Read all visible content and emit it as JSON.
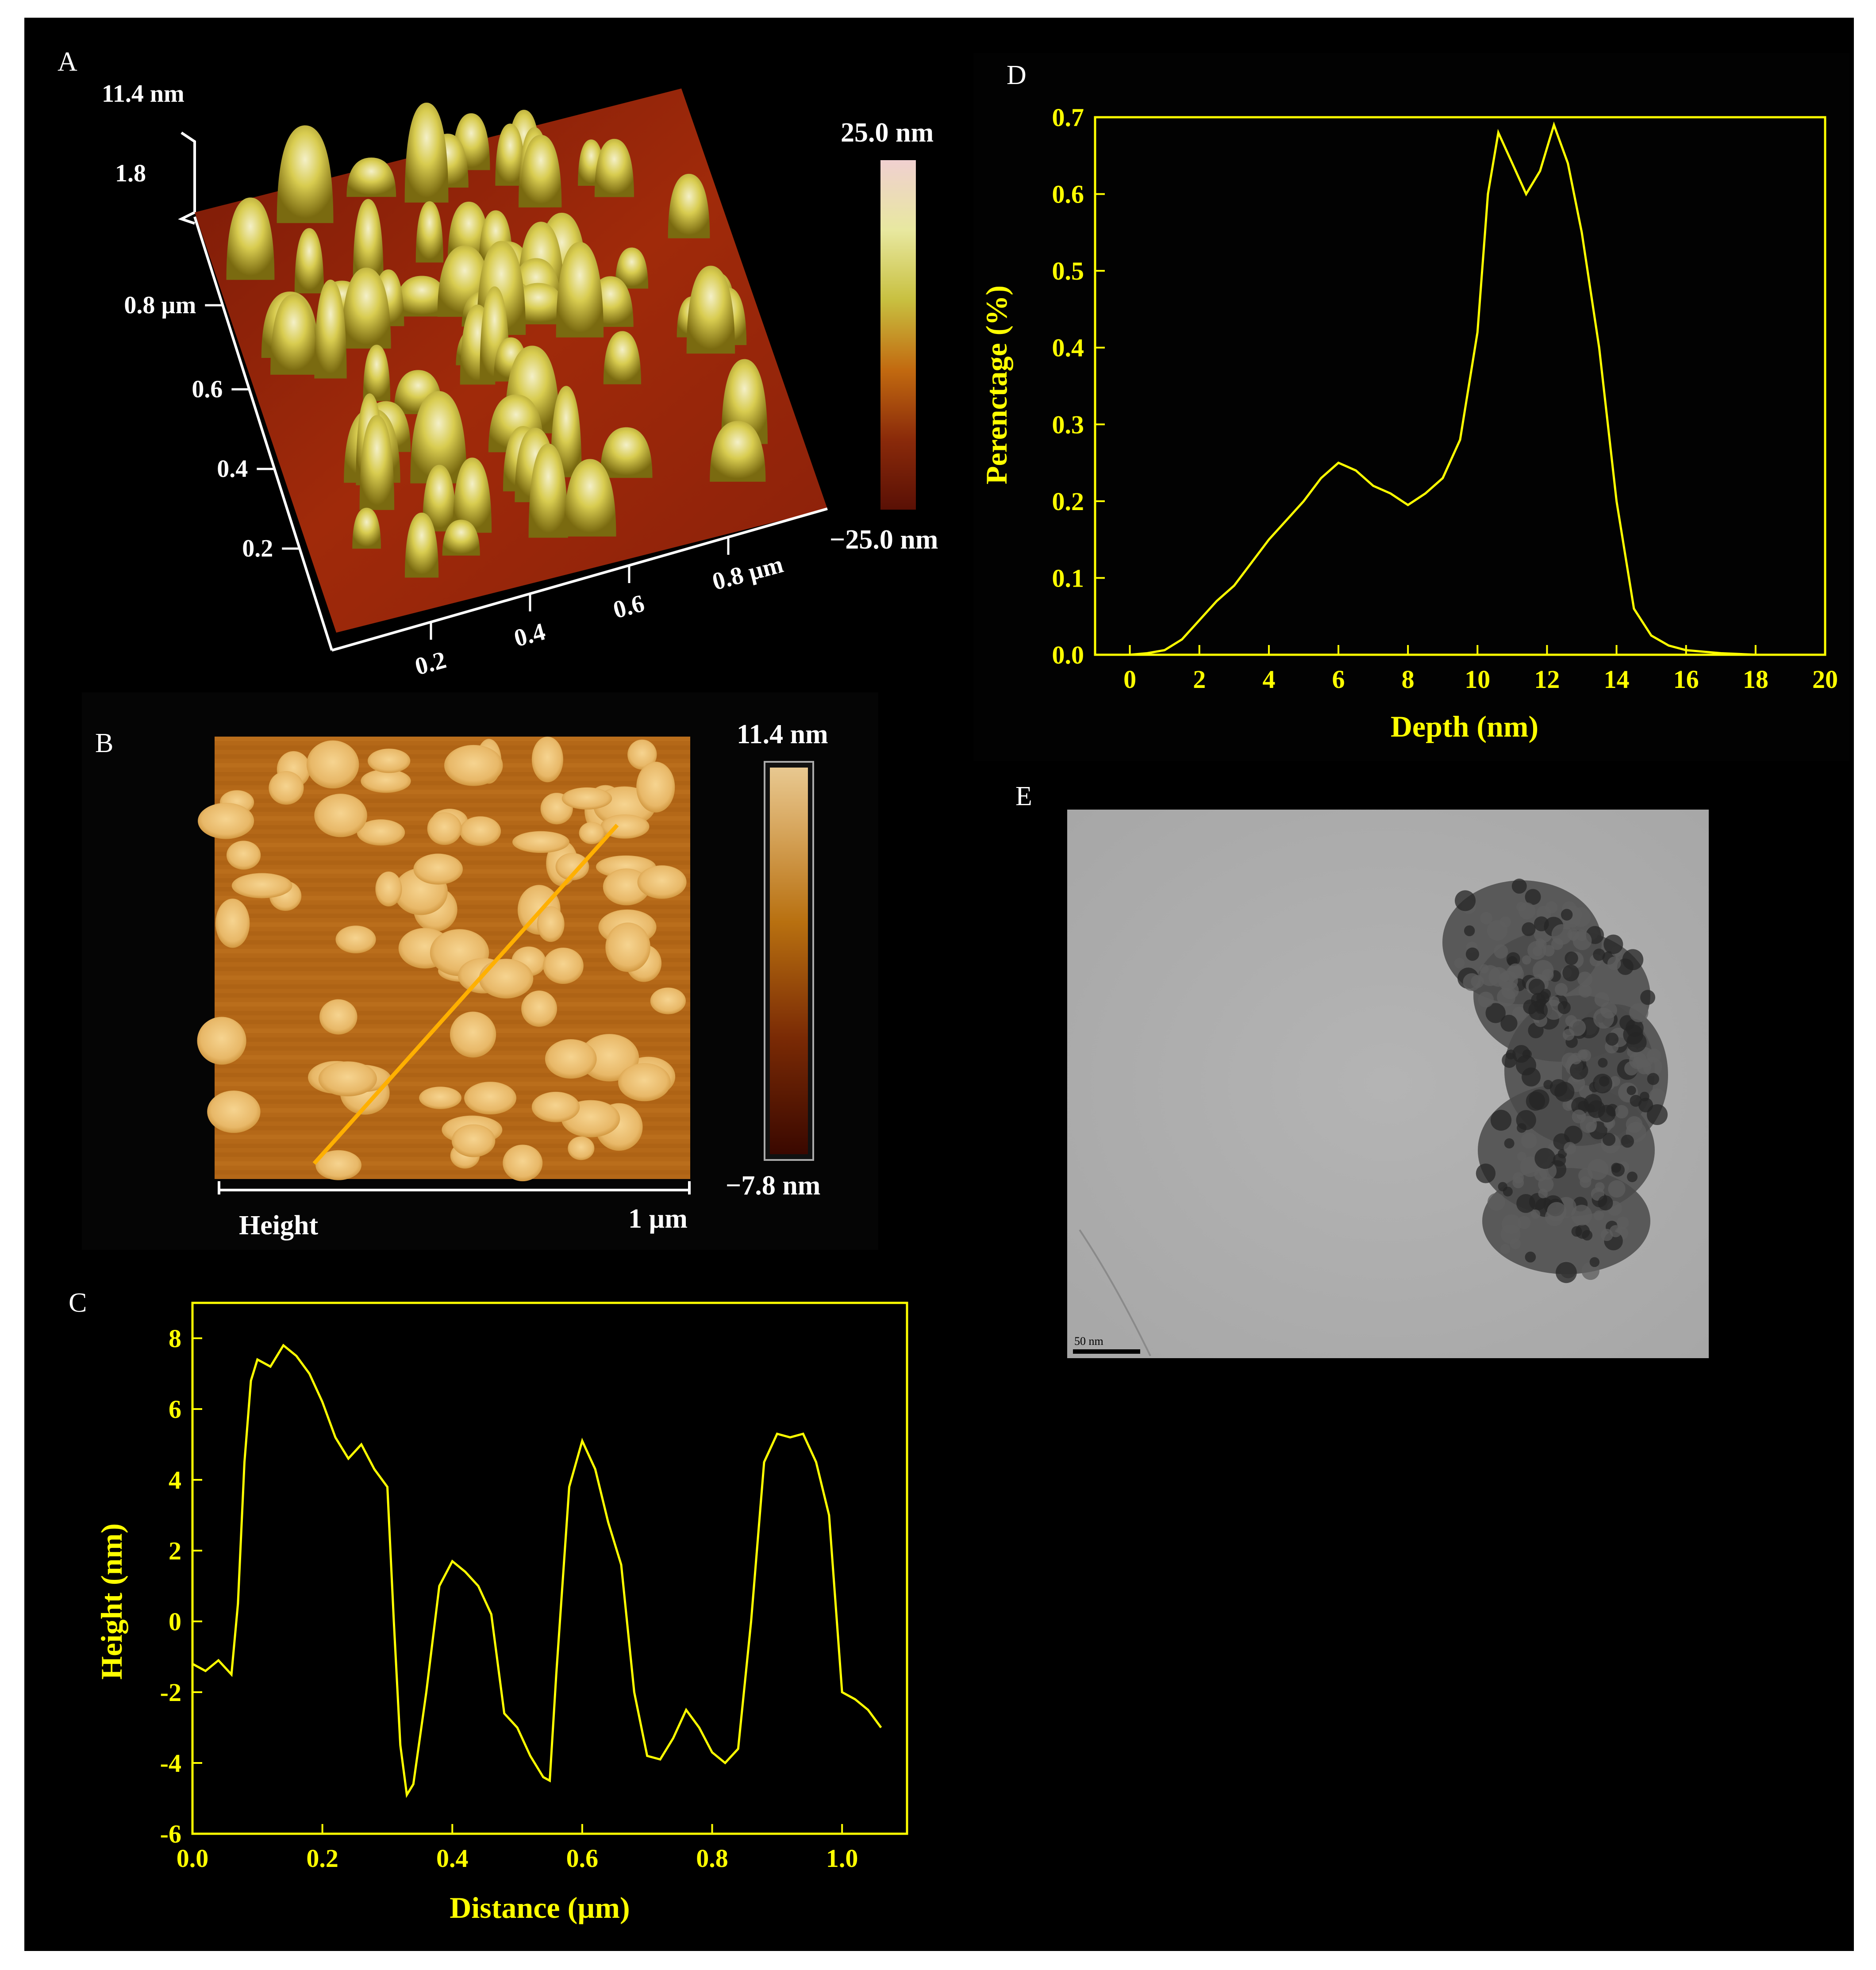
{
  "panels": {
    "A": {
      "label": "A",
      "z_top_label": "11.4 nm",
      "z_tick": "1.8",
      "colorbar_max": "25.0 nm",
      "colorbar_min": "−25.0 nm",
      "y_axis_ticks": [
        "0.8 µm",
        "0.6",
        "0.4",
        "0.2"
      ],
      "x_axis_ticks": [
        "0.2",
        "0.4",
        "0.6",
        "0.8 µm"
      ],
      "colorbar_colors": [
        "#5a1005",
        "#8a2a0a",
        "#c26a10",
        "#c8c040",
        "#e8e8a0",
        "#f0d0d0"
      ]
    },
    "B": {
      "label": "B",
      "colorbar_max": "11.4 nm",
      "colorbar_min": "−7.8 nm",
      "channel_label": "Height",
      "scale_label": "1 µm",
      "profile_line_color": "#ffb000"
    },
    "C": {
      "label": "C",
      "chart_data": {
        "type": "line",
        "xlabel": "Distance (µm)",
        "ylabel": "Height (nm)",
        "xlim": [
          0.0,
          1.1
        ],
        "ylim": [
          -6,
          9
        ],
        "xticks": [
          "0.0",
          "0.2",
          "0.4",
          "0.6",
          "0.8",
          "1.0"
        ],
        "yticks": [
          "8",
          "6",
          "4",
          "2",
          "0",
          "-2",
          "-4",
          "-6"
        ],
        "color": "#ffff00",
        "x": [
          0.0,
          0.02,
          0.04,
          0.06,
          0.07,
          0.08,
          0.09,
          0.1,
          0.12,
          0.14,
          0.16,
          0.18,
          0.2,
          0.22,
          0.24,
          0.26,
          0.28,
          0.3,
          0.31,
          0.32,
          0.33,
          0.34,
          0.36,
          0.38,
          0.4,
          0.42,
          0.44,
          0.46,
          0.48,
          0.5,
          0.52,
          0.54,
          0.55,
          0.56,
          0.58,
          0.6,
          0.62,
          0.64,
          0.66,
          0.68,
          0.7,
          0.72,
          0.74,
          0.76,
          0.78,
          0.8,
          0.82,
          0.84,
          0.86,
          0.88,
          0.9,
          0.92,
          0.94,
          0.96,
          0.98,
          1.0,
          1.02,
          1.04,
          1.06
        ],
        "y": [
          -1.2,
          -1.4,
          -1.1,
          -1.5,
          0.5,
          4.5,
          6.8,
          7.4,
          7.2,
          7.8,
          7.5,
          7.0,
          6.2,
          5.2,
          4.6,
          5.0,
          4.3,
          3.8,
          0.0,
          -3.5,
          -4.9,
          -4.6,
          -2.0,
          1.0,
          1.7,
          1.4,
          1.0,
          0.2,
          -2.6,
          -3.0,
          -3.8,
          -4.4,
          -4.5,
          -1.5,
          3.8,
          5.1,
          4.3,
          2.8,
          1.6,
          -2.0,
          -3.8,
          -3.9,
          -3.3,
          -2.5,
          -3.0,
          -3.7,
          -4.0,
          -3.6,
          0.0,
          4.5,
          5.3,
          5.2,
          5.3,
          4.5,
          3.0,
          -2.0,
          -2.2,
          -2.5,
          -3.0
        ]
      }
    },
    "D": {
      "label": "D",
      "chart_data": {
        "type": "line",
        "xlabel": "Depth (nm)",
        "ylabel": "Perenctage (%)",
        "xlim": [
          -1,
          20
        ],
        "ylim": [
          0.0,
          0.7
        ],
        "xticks": [
          "0",
          "2",
          "4",
          "6",
          "8",
          "10",
          "12",
          "14",
          "16",
          "18",
          "20"
        ],
        "yticks": [
          "0.0",
          "0.1",
          "0.2",
          "0.3",
          "0.4",
          "0.5",
          "0.6",
          "0.7"
        ],
        "color": "#ffff00",
        "x": [
          -1.0,
          0.0,
          0.5,
          1.0,
          1.5,
          2.0,
          2.5,
          3.0,
          3.5,
          4.0,
          4.5,
          5.0,
          5.5,
          6.0,
          6.5,
          7.0,
          7.5,
          8.0,
          8.5,
          9.0,
          9.5,
          10.0,
          10.3,
          10.6,
          11.0,
          11.4,
          11.8,
          12.2,
          12.6,
          13.0,
          13.5,
          14.0,
          14.5,
          15.0,
          15.5,
          16.0,
          17.0,
          18.0,
          20.0
        ],
        "y": [
          0.0,
          0.0,
          0.002,
          0.006,
          0.02,
          0.045,
          0.07,
          0.09,
          0.12,
          0.15,
          0.175,
          0.2,
          0.23,
          0.25,
          0.24,
          0.22,
          0.21,
          0.195,
          0.21,
          0.23,
          0.28,
          0.42,
          0.6,
          0.68,
          0.64,
          0.6,
          0.63,
          0.69,
          0.64,
          0.55,
          0.4,
          0.2,
          0.06,
          0.025,
          0.012,
          0.006,
          0.002,
          0.0,
          0.0
        ]
      }
    },
    "E": {
      "label": "E",
      "scale_bar_label": "50 nm"
    }
  }
}
